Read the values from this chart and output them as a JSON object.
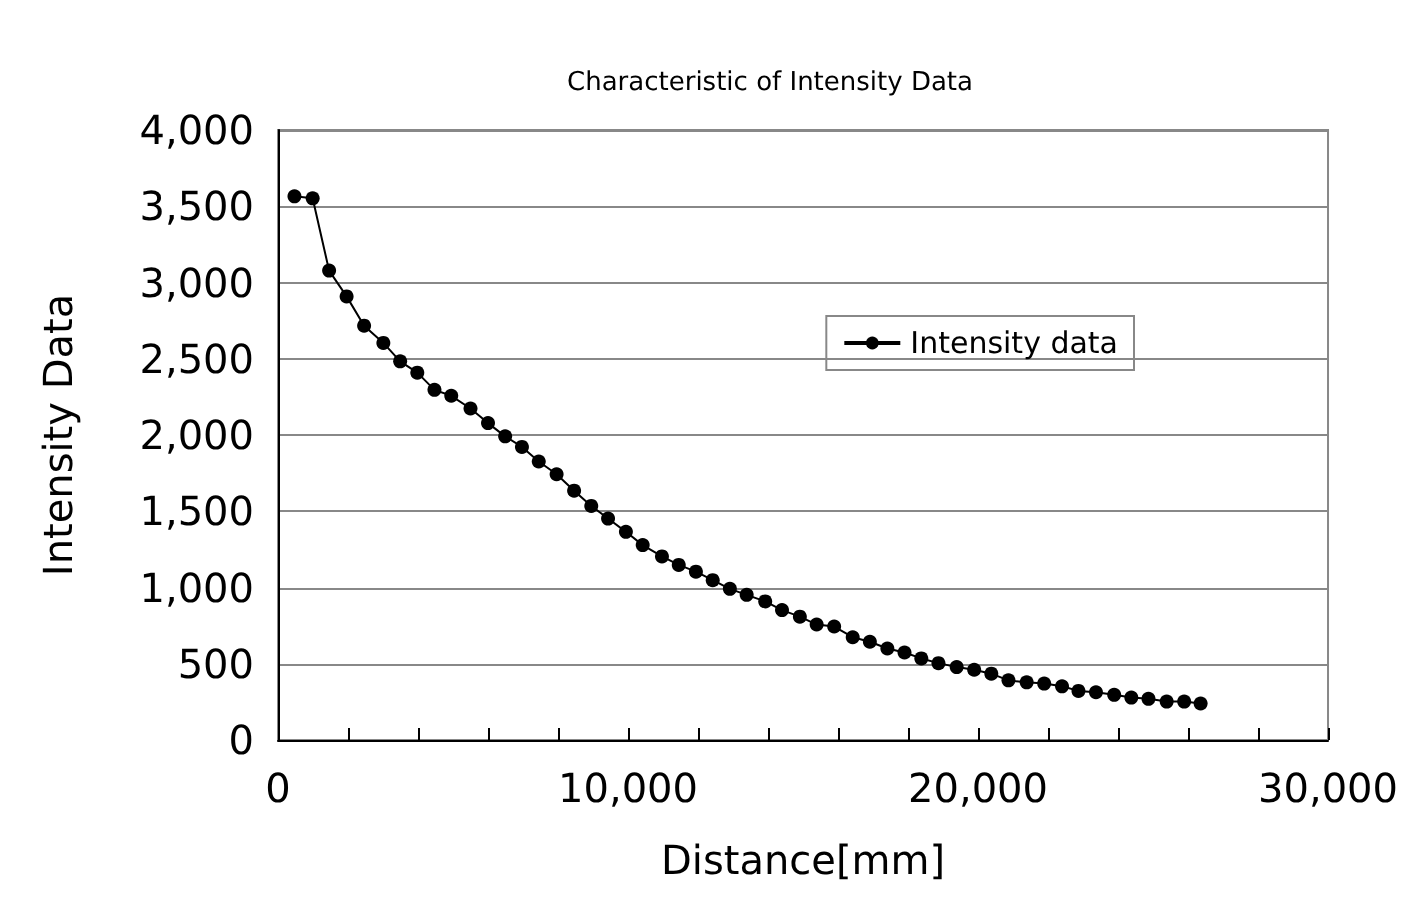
{
  "chart_data": {
    "type": "line",
    "title": "Characteristic of Intensity Data",
    "xlabel": "Distance[mm]",
    "ylabel": "Intensity Data",
    "x": [
      470,
      990,
      1460,
      1960,
      2460,
      3010,
      3490,
      3980,
      4470,
      4950,
      5500,
      6000,
      6490,
      6970,
      7450,
      7960,
      8460,
      8950,
      9430,
      9940,
      10420,
      10970,
      11450,
      11940,
      12420,
      12910,
      13390,
      13920,
      14400,
      14910,
      15390,
      15890,
      16420,
      16910,
      17410,
      17900,
      18380,
      18870,
      19390,
      19890,
      20380,
      20870,
      21390,
      21890,
      22400,
      22870,
      23370,
      23890,
      24380,
      24870,
      25390,
      25890,
      26360
    ],
    "series": [
      {
        "name": "Intensity data",
        "color": "#000000",
        "values": [
          3565,
          3552,
          3078,
          2909,
          2717,
          2604,
          2483,
          2409,
          2296,
          2257,
          2174,
          2078,
          1991,
          1922,
          1826,
          1743,
          1635,
          1535,
          1452,
          1365,
          1278,
          1204,
          1148,
          1104,
          1048,
          991,
          952,
          909,
          852,
          809,
          757,
          744,
          674,
          644,
          600,
          574,
          535,
          504,
          478,
          461,
          435,
          391,
          378,
          370,
          352,
          322,
          313,
          296,
          278,
          270,
          252,
          252,
          239
        ]
      }
    ],
    "xlim": [
      0,
      30000
    ],
    "xticks": [
      0,
      {
        "value": 2000,
        "label": null
      },
      {
        "value": 4000,
        "label": null
      },
      {
        "value": 6000,
        "label": null
      },
      {
        "value": 8000,
        "label": null
      },
      {
        "value": 10000,
        "label": "10,000"
      },
      {
        "value": 12000,
        "label": null
      },
      {
        "value": 14000,
        "label": null
      },
      {
        "value": 16000,
        "label": null
      },
      {
        "value": 18000,
        "label": null
      },
      {
        "value": 20000,
        "label": "20,000"
      },
      {
        "value": 22000,
        "label": null
      },
      {
        "value": 24000,
        "label": null
      },
      {
        "value": 26000,
        "label": null
      },
      {
        "value": 28000,
        "label": null
      },
      {
        "value": 30000,
        "label": "30,000"
      }
    ],
    "ylim": [
      0,
      4000
    ],
    "yticks": [
      0,
      500,
      {
        "value": 1000,
        "label": "1,000"
      },
      {
        "value": 1500,
        "label": "1,500"
      },
      {
        "value": 2000,
        "label": "2,000"
      },
      {
        "value": 2500,
        "label": "2,500"
      },
      {
        "value": 3000,
        "label": "3,000"
      },
      {
        "value": 3500,
        "label": "3,500"
      },
      {
        "value": 4000,
        "label": "4,000"
      }
    ],
    "grid": "y",
    "legend": "top right",
    "marker": "circle",
    "line_style": "solid"
  }
}
